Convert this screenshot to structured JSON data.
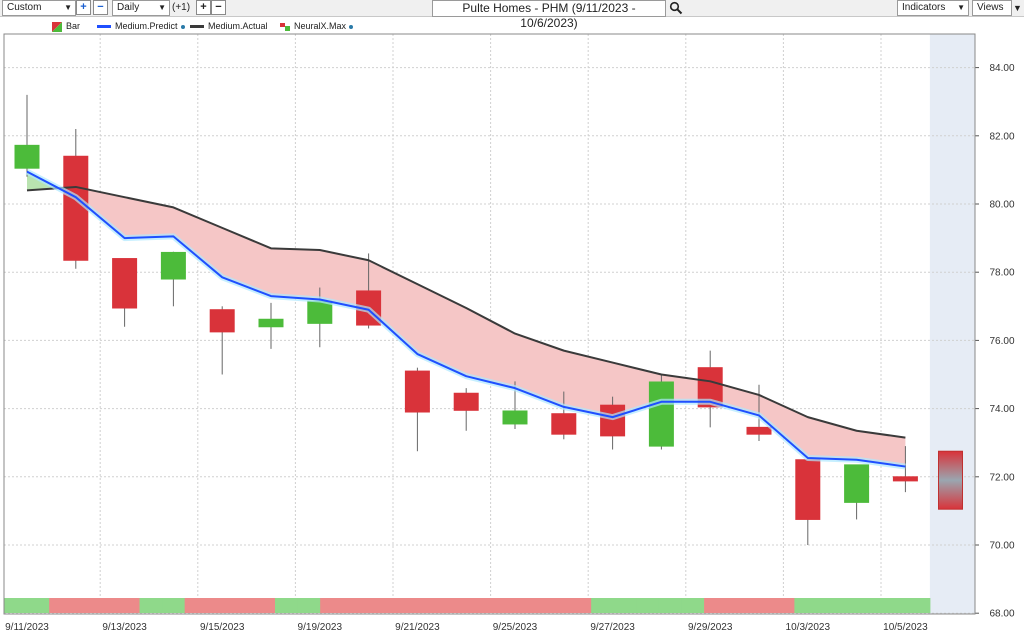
{
  "toolbar": {
    "range_select": "Custom",
    "interval_select": "Daily",
    "offset_label": "(+1)",
    "title": "Pulte Homes - PHM (9/11/2023 - 10/6/2023)",
    "indicators_label": "Indicators",
    "views_label": "Views"
  },
  "legend": {
    "bar_label": "Bar",
    "predict_label": "Medium.Predict",
    "actual_label": "Medium.Actual",
    "neural_label": "NeuralX.Max"
  },
  "colors": {
    "up": "#4cbb3a",
    "down": "#d9333a",
    "predict": "#1f4fff",
    "actual": "#3a3a3a",
    "band": "#f5c6c6",
    "band_green": "#b9e3b0",
    "strip_up": "#8fd98a",
    "strip_down": "#ec8a8a",
    "forecast_bg": "#e6ecf5"
  },
  "chart_data": {
    "type": "candlestick",
    "title": "Pulte Homes - PHM (9/11/2023 - 10/6/2023)",
    "ylim": [
      68,
      85
    ],
    "y_ticks": [
      "84.00",
      "82.00",
      "80.00",
      "78.00",
      "76.00",
      "74.00",
      "72.00",
      "70.00",
      "68.00"
    ],
    "x_ticks": [
      "9/11/2023",
      "9/13/2023",
      "9/15/2023",
      "9/19/2023",
      "9/21/2023",
      "9/25/2023",
      "9/27/2023",
      "9/29/2023",
      "10/3/2023",
      "10/5/2023"
    ],
    "candles": [
      {
        "o": 81.05,
        "h": 83.2,
        "l": 80.8,
        "c": 81.72
      },
      {
        "o": 81.4,
        "h": 82.2,
        "l": 78.1,
        "c": 78.35
      },
      {
        "o": 78.4,
        "h": 78.4,
        "l": 76.4,
        "c": 76.95
      },
      {
        "o": 77.8,
        "h": 78.6,
        "l": 77.0,
        "c": 78.58
      },
      {
        "o": 76.9,
        "h": 77.0,
        "l": 75.0,
        "c": 76.25
      },
      {
        "o": 76.4,
        "h": 77.1,
        "l": 75.75,
        "c": 76.62
      },
      {
        "o": 76.5,
        "h": 77.55,
        "l": 75.8,
        "c": 77.15
      },
      {
        "o": 77.45,
        "h": 78.55,
        "l": 76.35,
        "c": 76.45
      },
      {
        "o": 75.1,
        "h": 75.2,
        "l": 72.75,
        "c": 73.9
      },
      {
        "o": 74.45,
        "h": 74.6,
        "l": 73.35,
        "c": 73.95
      },
      {
        "o": 73.55,
        "h": 74.8,
        "l": 73.4,
        "c": 73.93
      },
      {
        "o": 73.85,
        "h": 74.5,
        "l": 73.1,
        "c": 73.25
      },
      {
        "o": 74.1,
        "h": 74.35,
        "l": 72.8,
        "c": 73.2
      },
      {
        "o": 72.9,
        "h": 75.0,
        "l": 72.8,
        "c": 74.78
      },
      {
        "o": 75.2,
        "h": 75.7,
        "l": 73.45,
        "c": 74.05
      },
      {
        "o": 73.45,
        "h": 74.7,
        "l": 73.05,
        "c": 73.25
      },
      {
        "o": 72.5,
        "h": 72.5,
        "l": 70.0,
        "c": 70.75
      },
      {
        "o": 71.25,
        "h": 72.35,
        "l": 70.75,
        "c": 72.35
      },
      {
        "o": 72.0,
        "h": 72.9,
        "l": 71.55,
        "c": 71.88
      }
    ],
    "series": [
      {
        "name": "Medium.Predict",
        "values": [
          80.95,
          80.2,
          79.0,
          79.05,
          77.85,
          77.3,
          77.2,
          76.9,
          75.6,
          74.95,
          74.6,
          74.05,
          73.75,
          74.2,
          74.2,
          73.8,
          72.55,
          72.5,
          72.3
        ]
      },
      {
        "name": "Medium.Actual",
        "values": [
          80.4,
          80.5,
          80.2,
          79.9,
          79.3,
          78.7,
          78.65,
          78.35,
          77.65,
          76.95,
          76.2,
          75.7,
          75.35,
          75.0,
          74.8,
          74.4,
          73.75,
          73.35,
          73.15
        ]
      }
    ],
    "neural_max": {
      "high": 72.75,
      "low": 71.05
    },
    "signal_strip": [
      "up",
      "up",
      "down",
      "down",
      "down",
      "down",
      "up",
      "up",
      "down",
      "down",
      "down",
      "down",
      "up",
      "up",
      "down",
      "down",
      "down",
      "down",
      "down",
      "down",
      "down",
      "down",
      "down",
      "down",
      "down",
      "down",
      "up",
      "up",
      "up",
      "up",
      "up",
      "down",
      "down",
      "down",
      "down",
      "up",
      "up",
      "up",
      "up",
      "up",
      "up"
    ]
  }
}
